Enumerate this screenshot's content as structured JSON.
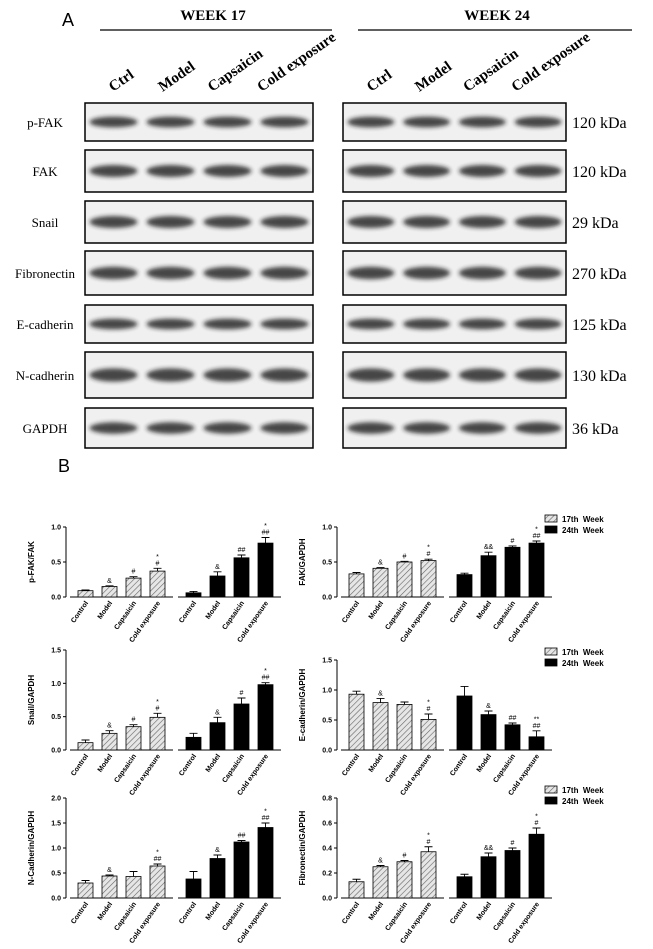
{
  "panel_a": {
    "label": "A",
    "weeks": [
      "WEEK 17",
      "WEEK 24"
    ],
    "lanes": [
      "Ctrl",
      "Model",
      "Capsaicin",
      "Cold exposure"
    ],
    "rows": [
      {
        "protein": "p-FAK",
        "size": "120 kDa"
      },
      {
        "protein": "FAK",
        "size": "120 kDa"
      },
      {
        "protein": "Snail",
        "size": "29 kDa"
      },
      {
        "protein": "Fibronectin",
        "size": "270 kDa"
      },
      {
        "protein": "E-cadherin",
        "size": "125 kDa"
      },
      {
        "protein": "N-cadherin",
        "size": "130 kDa"
      },
      {
        "protein": "GAPDH",
        "size": "36 kDa"
      }
    ]
  },
  "panel_b": {
    "label": "B"
  },
  "chart_data": [
    {
      "type": "bar",
      "ylabel": "p-FAK/FAK",
      "categories": [
        "Control",
        "Model",
        "Capsaicin",
        "Cold exposure"
      ],
      "ylim": [
        0,
        1
      ],
      "yticks": [
        {
          "value": 0,
          "label": "0.0"
        },
        {
          "value": 0.5,
          "label": "0.5"
        },
        {
          "value": 1,
          "label": "1.0"
        }
      ],
      "legend": false,
      "series": [
        {
          "name": "17th  Week",
          "color": "#e0e0e0",
          "pattern": "hatch",
          "values": [
            0.09,
            0.15,
            0.27,
            0.37
          ],
          "errors": [
            0.01,
            0.01,
            0.02,
            0.04
          ],
          "annotations": [
            null,
            [
              "&"
            ],
            [
              "#"
            ],
            [
              "*",
              "#"
            ]
          ]
        },
        {
          "name": "24th  Week",
          "color": "#000000",
          "values": [
            0.06,
            0.3,
            0.56,
            0.77
          ],
          "errors": [
            0.02,
            0.06,
            0.04,
            0.08
          ],
          "annotations": [
            null,
            [
              "&"
            ],
            [
              "##"
            ],
            [
              "*",
              "##"
            ]
          ]
        }
      ]
    },
    {
      "type": "bar",
      "ylabel": "FAK/GAPDH",
      "categories": [
        "Control",
        "Model",
        "Capsaicin",
        "Cold exposure"
      ],
      "ylim": [
        0,
        1
      ],
      "yticks": [
        {
          "value": 0,
          "label": "0.0"
        },
        {
          "value": 0.5,
          "label": "0.5"
        },
        {
          "value": 1,
          "label": "1.0"
        }
      ],
      "legend": "right",
      "series": [
        {
          "name": "17th  Week",
          "color": "#e0e0e0",
          "pattern": "hatch",
          "values": [
            0.33,
            0.41,
            0.5,
            0.52
          ],
          "errors": [
            0.02,
            0.01,
            0.01,
            0.02
          ],
          "annotations": [
            null,
            [
              "&"
            ],
            [
              "#"
            ],
            [
              "*",
              "#"
            ]
          ]
        },
        {
          "name": "24th  Week",
          "color": "#000000",
          "values": [
            0.32,
            0.59,
            0.71,
            0.77
          ],
          "errors": [
            0.02,
            0.05,
            0.02,
            0.03
          ],
          "annotations": [
            null,
            [
              "&&"
            ],
            [
              "#"
            ],
            [
              "*",
              "##"
            ]
          ]
        }
      ]
    },
    {
      "type": "bar",
      "ylabel": "Snail/GAPDH",
      "categories": [
        "Control",
        "Model",
        "Capsaicin",
        "Cold exposure"
      ],
      "ylim": [
        0,
        1.5
      ],
      "yticks": [
        {
          "value": 0,
          "label": "0.0"
        },
        {
          "value": 0.5,
          "label": "0.5"
        },
        {
          "value": 1,
          "label": "1.0"
        },
        {
          "value": 1.5,
          "label": "1.5"
        }
      ],
      "legend": false,
      "series": [
        {
          "name": "17th  Week",
          "color": "#e0e0e0",
          "pattern": "hatch",
          "values": [
            0.11,
            0.25,
            0.35,
            0.49
          ],
          "errors": [
            0.04,
            0.04,
            0.03,
            0.06
          ],
          "annotations": [
            null,
            [
              "&"
            ],
            [
              "#"
            ],
            [
              "*",
              "#"
            ]
          ]
        },
        {
          "name": "24th  Week",
          "color": "#000000",
          "values": [
            0.19,
            0.41,
            0.69,
            0.98
          ],
          "errors": [
            0.06,
            0.08,
            0.09,
            0.03
          ],
          "annotations": [
            null,
            [
              "&"
            ],
            [
              "#"
            ],
            [
              "*",
              "##"
            ]
          ]
        }
      ]
    },
    {
      "type": "bar",
      "ylabel": "E-cadherin/GAPDH",
      "categories": [
        "Control",
        "Model",
        "Capsaicin",
        "Cold exposure"
      ],
      "ylim": [
        0,
        1.5
      ],
      "yticks": [
        {
          "value": 0,
          "label": "0.0"
        },
        {
          "value": 0.5,
          "label": "0.5"
        },
        {
          "value": 1,
          "label": "1.0"
        },
        {
          "value": 1.5,
          "label": "1.5"
        }
      ],
      "legend": "right",
      "series": [
        {
          "name": "17th  Week",
          "color": "#e0e0e0",
          "pattern": "hatch",
          "values": [
            0.93,
            0.79,
            0.76,
            0.51
          ],
          "errors": [
            0.05,
            0.07,
            0.04,
            0.09
          ],
          "annotations": [
            null,
            [
              "&"
            ],
            null,
            [
              "*",
              "#"
            ]
          ]
        },
        {
          "name": "24th  Week",
          "color": "#000000",
          "values": [
            0.9,
            0.59,
            0.42,
            0.22
          ],
          "errors": [
            0.16,
            0.06,
            0.03,
            0.1
          ],
          "annotations": [
            null,
            [
              "&"
            ],
            [
              "##"
            ],
            [
              "**",
              "##"
            ]
          ]
        }
      ]
    },
    {
      "type": "bar",
      "ylabel": "N-Cadherin/GAPDH",
      "categories": [
        "Control",
        "Model",
        "Capsaicin",
        "Cold exposure"
      ],
      "ylim": [
        0,
        2
      ],
      "yticks": [
        {
          "value": 0,
          "label": "0.0"
        },
        {
          "value": 0.5,
          "label": "0.5"
        },
        {
          "value": 1,
          "label": "1.0"
        },
        {
          "value": 1.5,
          "label": "1.5"
        },
        {
          "value": 2,
          "label": "2.0"
        }
      ],
      "legend": false,
      "series": [
        {
          "name": "17th  Week",
          "color": "#e0e0e0",
          "pattern": "hatch",
          "values": [
            0.3,
            0.44,
            0.43,
            0.64
          ],
          "errors": [
            0.05,
            0.02,
            0.1,
            0.04
          ],
          "annotations": [
            null,
            [
              "&"
            ],
            null,
            [
              "*",
              "##"
            ]
          ]
        },
        {
          "name": "24th  Week",
          "color": "#000000",
          "values": [
            0.38,
            0.79,
            1.12,
            1.41
          ],
          "errors": [
            0.15,
            0.07,
            0.03,
            0.09
          ],
          "annotations": [
            null,
            [
              "&"
            ],
            [
              "##"
            ],
            [
              "*",
              "##"
            ]
          ]
        }
      ]
    },
    {
      "type": "bar",
      "ylabel": "Fibronectin/GAPDH",
      "categories": [
        "Control",
        "Model",
        "Capsaicin",
        "Cold exposure"
      ],
      "ylim": [
        0,
        0.8
      ],
      "yticks": [
        {
          "value": 0,
          "label": "0.0"
        },
        0.2,
        0.4,
        0.6,
        0.8
      ],
      "legend": "right",
      "series": [
        {
          "name": "17th  Week",
          "color": "#e0e0e0",
          "pattern": "hatch",
          "values": [
            0.13,
            0.25,
            0.29,
            0.37
          ],
          "errors": [
            0.02,
            0.01,
            0.01,
            0.04
          ],
          "annotations": [
            null,
            [
              "&"
            ],
            [
              "#"
            ],
            [
              "*",
              "#"
            ]
          ]
        },
        {
          "name": "24th  Week",
          "color": "#000000",
          "values": [
            0.17,
            0.33,
            0.38,
            0.51
          ],
          "errors": [
            0.02,
            0.03,
            0.02,
            0.05
          ],
          "annotations": [
            null,
            [
              "&&"
            ],
            [
              "#"
            ],
            [
              "*",
              "#"
            ]
          ]
        }
      ]
    }
  ]
}
